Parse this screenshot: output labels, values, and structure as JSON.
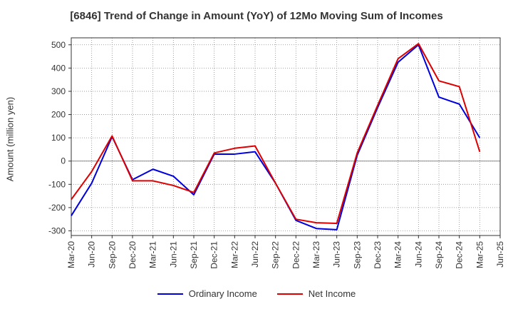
{
  "chart_data": {
    "type": "line",
    "title": "[6846]  Trend of Change in Amount (YoY) of 12Mo Moving Sum of Incomes",
    "ylabel": "Amount (million yen)",
    "xlabel": "",
    "ylim": [
      -320,
      530
    ],
    "yticks": [
      500,
      400,
      300,
      200,
      100,
      0,
      -100,
      -200,
      -300
    ],
    "grid": true,
    "legend_position": "bottom",
    "x_tick_labels": [
      "Mar-20",
      "Jun-20",
      "Sep-20",
      "Dec-20",
      "Mar-21",
      "Jun-21",
      "Sep-21",
      "Dec-21",
      "Mar-22",
      "Jun-22",
      "Sep-22",
      "Dec-22",
      "Mar-23",
      "Jun-23",
      "Sep-23",
      "Dec-23",
      "Mar-24",
      "Jun-24",
      "Sep-24",
      "Dec-24",
      "Mar-25",
      "Jun-25"
    ],
    "series": [
      {
        "name": "Ordinary Income",
        "color": "#0000dd",
        "values": [
          -235,
          -95,
          105,
          -80,
          -35,
          -65,
          -145,
          30,
          30,
          40,
          -95,
          -255,
          -290,
          -295,
          25,
          230,
          425,
          500,
          275,
          245,
          100,
          null
        ]
      },
      {
        "name": "Net Income",
        "color": "#dd0000",
        "values": [
          -165,
          -45,
          108,
          -85,
          -85,
          -105,
          -135,
          35,
          55,
          65,
          -95,
          -250,
          -265,
          -268,
          35,
          240,
          440,
          505,
          345,
          320,
          40,
          null
        ]
      }
    ]
  }
}
